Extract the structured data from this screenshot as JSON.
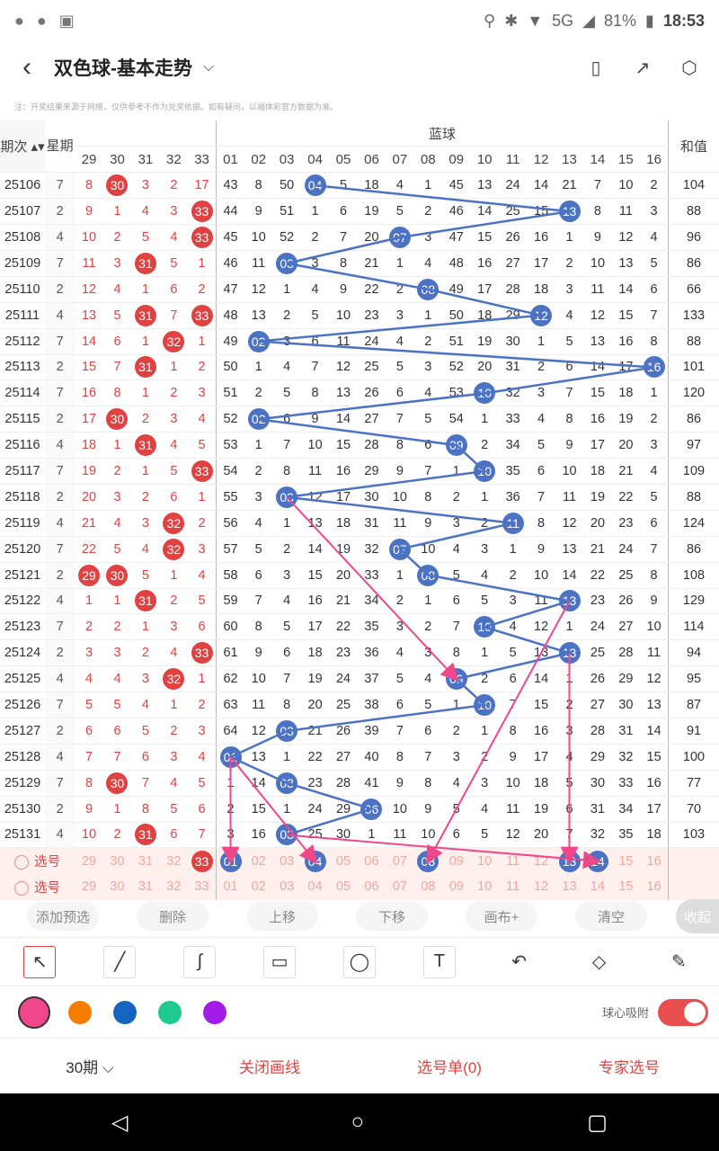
{
  "status": {
    "icons_left": [
      "wechat-icon",
      "wechat-icon",
      "image-icon"
    ],
    "battery": "81%",
    "network": "5G",
    "time": "18:53"
  },
  "nav": {
    "title": "双色球-基本走势"
  },
  "notice": "注：开奖结果来源于网络，仅供参考不作为兑奖依据。如有疑问，以福体彩官方数据为准。",
  "headers": {
    "period": "期次",
    "week": "星期",
    "blue": "蓝球",
    "sum": "和值",
    "red_cols": [
      "29",
      "30",
      "31",
      "32",
      "33"
    ],
    "blue_cols": [
      "01",
      "02",
      "03",
      "04",
      "05",
      "06",
      "07",
      "08",
      "09",
      "10",
      "11",
      "12",
      "13",
      "14",
      "15",
      "16"
    ]
  },
  "rows": [
    {
      "p": "25106",
      "w": "7",
      "red": [
        "8",
        "30",
        "3",
        "2",
        "17"
      ],
      "blue": [
        "43",
        "8",
        "50",
        "04",
        "5",
        "18",
        "4",
        "1",
        "45",
        "13",
        "24",
        "14",
        "21",
        "7",
        "10",
        "2"
      ],
      "sum": "104"
    },
    {
      "p": "25107",
      "w": "2",
      "red": [
        "9",
        "1",
        "4",
        "3",
        "33"
      ],
      "blue": [
        "44",
        "9",
        "51",
        "1",
        "6",
        "19",
        "5",
        "2",
        "46",
        "14",
        "25",
        "15",
        "13",
        "8",
        "11",
        "3"
      ],
      "sum": "88"
    },
    {
      "p": "25108",
      "w": "4",
      "red": [
        "10",
        "2",
        "5",
        "4",
        "33"
      ],
      "blue": [
        "45",
        "10",
        "52",
        "2",
        "7",
        "20",
        "07",
        "3",
        "47",
        "15",
        "26",
        "16",
        "1",
        "9",
        "12",
        "4"
      ],
      "sum": "96"
    },
    {
      "p": "25109",
      "w": "7",
      "red": [
        "11",
        "3",
        "31",
        "5",
        "1"
      ],
      "blue": [
        "46",
        "11",
        "03",
        "3",
        "8",
        "21",
        "1",
        "4",
        "48",
        "16",
        "27",
        "17",
        "2",
        "10",
        "13",
        "5"
      ],
      "sum": "86"
    },
    {
      "p": "25110",
      "w": "2",
      "red": [
        "12",
        "4",
        "1",
        "6",
        "2"
      ],
      "blue": [
        "47",
        "12",
        "1",
        "4",
        "9",
        "22",
        "2",
        "08",
        "49",
        "17",
        "28",
        "18",
        "3",
        "11",
        "14",
        "6"
      ],
      "sum": "66"
    },
    {
      "p": "25111",
      "w": "4",
      "red": [
        "13",
        "5",
        "31",
        "7",
        "33"
      ],
      "blue": [
        "48",
        "13",
        "2",
        "5",
        "10",
        "23",
        "3",
        "1",
        "50",
        "18",
        "29",
        "12",
        "4",
        "12",
        "15",
        "7"
      ],
      "sum": "133"
    },
    {
      "p": "25112",
      "w": "7",
      "red": [
        "14",
        "6",
        "1",
        "32",
        "1"
      ],
      "blue": [
        "49",
        "02",
        "3",
        "6",
        "11",
        "24",
        "4",
        "2",
        "51",
        "19",
        "30",
        "1",
        "5",
        "13",
        "16",
        "8"
      ],
      "sum": "88"
    },
    {
      "p": "25113",
      "w": "2",
      "red": [
        "15",
        "7",
        "31",
        "1",
        "2"
      ],
      "blue": [
        "50",
        "1",
        "4",
        "7",
        "12",
        "25",
        "5",
        "3",
        "52",
        "20",
        "31",
        "2",
        "6",
        "14",
        "17",
        "16"
      ],
      "sum": "101"
    },
    {
      "p": "25114",
      "w": "7",
      "red": [
        "16",
        "8",
        "1",
        "2",
        "3"
      ],
      "blue": [
        "51",
        "2",
        "5",
        "8",
        "13",
        "26",
        "6",
        "4",
        "53",
        "10",
        "32",
        "3",
        "7",
        "15",
        "18",
        "1"
      ],
      "sum": "120"
    },
    {
      "p": "25115",
      "w": "2",
      "red": [
        "17",
        "30",
        "2",
        "3",
        "4"
      ],
      "blue": [
        "52",
        "02",
        "6",
        "9",
        "14",
        "27",
        "7",
        "5",
        "54",
        "1",
        "33",
        "4",
        "8",
        "16",
        "19",
        "2"
      ],
      "sum": "86"
    },
    {
      "p": "25116",
      "w": "4",
      "red": [
        "18",
        "1",
        "31",
        "4",
        "5"
      ],
      "blue": [
        "53",
        "1",
        "7",
        "10",
        "15",
        "28",
        "8",
        "6",
        "09",
        "2",
        "34",
        "5",
        "9",
        "17",
        "20",
        "3"
      ],
      "sum": "97"
    },
    {
      "p": "25117",
      "w": "7",
      "red": [
        "19",
        "2",
        "1",
        "5",
        "33"
      ],
      "blue": [
        "54",
        "2",
        "8",
        "11",
        "16",
        "29",
        "9",
        "7",
        "1",
        "10",
        "35",
        "6",
        "10",
        "18",
        "21",
        "4"
      ],
      "sum": "109"
    },
    {
      "p": "25118",
      "w": "2",
      "red": [
        "20",
        "3",
        "2",
        "6",
        "1"
      ],
      "blue": [
        "55",
        "3",
        "03",
        "12",
        "17",
        "30",
        "10",
        "8",
        "2",
        "1",
        "36",
        "7",
        "11",
        "19",
        "22",
        "5"
      ],
      "sum": "88"
    },
    {
      "p": "25119",
      "w": "4",
      "red": [
        "21",
        "4",
        "3",
        "32",
        "2"
      ],
      "blue": [
        "56",
        "4",
        "1",
        "13",
        "18",
        "31",
        "11",
        "9",
        "3",
        "2",
        "11",
        "8",
        "12",
        "20",
        "23",
        "6"
      ],
      "sum": "124"
    },
    {
      "p": "25120",
      "w": "7",
      "red": [
        "22",
        "5",
        "4",
        "32",
        "3"
      ],
      "blue": [
        "57",
        "5",
        "2",
        "14",
        "19",
        "32",
        "07",
        "10",
        "4",
        "3",
        "1",
        "9",
        "13",
        "21",
        "24",
        "7"
      ],
      "sum": "86"
    },
    {
      "p": "25121",
      "w": "2",
      "red": [
        "29",
        "30",
        "5",
        "1",
        "4"
      ],
      "blue": [
        "58",
        "6",
        "3",
        "15",
        "20",
        "33",
        "1",
        "08",
        "5",
        "4",
        "2",
        "10",
        "14",
        "22",
        "25",
        "8"
      ],
      "sum": "108"
    },
    {
      "p": "25122",
      "w": "4",
      "red": [
        "1",
        "1",
        "31",
        "2",
        "5"
      ],
      "blue": [
        "59",
        "7",
        "4",
        "16",
        "21",
        "34",
        "2",
        "1",
        "6",
        "5",
        "3",
        "11",
        "13",
        "23",
        "26",
        "9"
      ],
      "sum": "129"
    },
    {
      "p": "25123",
      "w": "7",
      "red": [
        "2",
        "2",
        "1",
        "3",
        "6"
      ],
      "blue": [
        "60",
        "8",
        "5",
        "17",
        "22",
        "35",
        "3",
        "2",
        "7",
        "10",
        "4",
        "12",
        "1",
        "24",
        "27",
        "10"
      ],
      "sum": "114"
    },
    {
      "p": "25124",
      "w": "2",
      "red": [
        "3",
        "3",
        "2",
        "4",
        "33"
      ],
      "blue": [
        "61",
        "9",
        "6",
        "18",
        "23",
        "36",
        "4",
        "3",
        "8",
        "1",
        "5",
        "13",
        "13",
        "25",
        "28",
        "11"
      ],
      "sum": "94"
    },
    {
      "p": "25125",
      "w": "4",
      "red": [
        "4",
        "4",
        "3",
        "32",
        "1"
      ],
      "blue": [
        "62",
        "10",
        "7",
        "19",
        "24",
        "37",
        "5",
        "4",
        "09",
        "2",
        "6",
        "14",
        "1",
        "26",
        "29",
        "12"
      ],
      "sum": "95"
    },
    {
      "p": "25126",
      "w": "7",
      "red": [
        "5",
        "5",
        "4",
        "1",
        "2"
      ],
      "blue": [
        "63",
        "11",
        "8",
        "20",
        "25",
        "38",
        "6",
        "5",
        "1",
        "10",
        "7",
        "15",
        "2",
        "27",
        "30",
        "13"
      ],
      "sum": "87"
    },
    {
      "p": "25127",
      "w": "2",
      "red": [
        "6",
        "6",
        "5",
        "2",
        "3"
      ],
      "blue": [
        "64",
        "12",
        "03",
        "21",
        "26",
        "39",
        "7",
        "6",
        "2",
        "1",
        "8",
        "16",
        "3",
        "28",
        "31",
        "14"
      ],
      "sum": "91"
    },
    {
      "p": "25128",
      "w": "4",
      "red": [
        "7",
        "7",
        "6",
        "3",
        "4"
      ],
      "blue": [
        "01",
        "13",
        "1",
        "22",
        "27",
        "40",
        "8",
        "7",
        "3",
        "2",
        "9",
        "17",
        "4",
        "29",
        "32",
        "15"
      ],
      "sum": "100"
    },
    {
      "p": "25129",
      "w": "7",
      "red": [
        "8",
        "30",
        "7",
        "4",
        "5"
      ],
      "blue": [
        "1",
        "14",
        "03",
        "23",
        "28",
        "41",
        "9",
        "8",
        "4",
        "3",
        "10",
        "18",
        "5",
        "30",
        "33",
        "16"
      ],
      "sum": "77"
    },
    {
      "p": "25130",
      "w": "2",
      "red": [
        "9",
        "1",
        "8",
        "5",
        "6"
      ],
      "blue": [
        "2",
        "15",
        "1",
        "24",
        "29",
        "06",
        "10",
        "9",
        "5",
        "4",
        "11",
        "19",
        "6",
        "31",
        "34",
        "17"
      ],
      "sum": "70"
    },
    {
      "p": "25131",
      "w": "4",
      "red": [
        "10",
        "2",
        "31",
        "6",
        "7"
      ],
      "blue": [
        "3",
        "16",
        "03",
        "25",
        "30",
        "1",
        "11",
        "10",
        "6",
        "5",
        "12",
        "20",
        "7",
        "32",
        "35",
        "18"
      ],
      "sum": "103"
    }
  ],
  "hits": {
    "25106": {
      "red": [
        1
      ],
      "blue": 3
    },
    "25107": {
      "red": [
        4
      ],
      "blue": 12
    },
    "25108": {
      "red": [
        4
      ],
      "blue": 6
    },
    "25109": {
      "red": [
        2
      ],
      "blue": 2
    },
    "25110": {
      "red": [],
      "blue": 7
    },
    "25111": {
      "red": [
        2,
        4
      ],
      "blue": 11
    },
    "25112": {
      "red": [
        3
      ],
      "blue": 1
    },
    "25113": {
      "red": [
        2
      ],
      "blue": 15
    },
    "25114": {
      "red": [],
      "blue": 9
    },
    "25115": {
      "red": [
        1
      ],
      "blue": 1
    },
    "25116": {
      "red": [
        2
      ],
      "blue": 8
    },
    "25117": {
      "red": [
        4
      ],
      "blue": 9
    },
    "25118": {
      "red": [],
      "blue": 2
    },
    "25119": {
      "red": [
        3
      ],
      "blue": 10
    },
    "25120": {
      "red": [
        3
      ],
      "blue": 6
    },
    "25121": {
      "red": [
        0,
        1
      ],
      "blue": 7
    },
    "25122": {
      "red": [
        2
      ],
      "blue": 12
    },
    "25123": {
      "red": [],
      "blue": 9
    },
    "25124": {
      "red": [
        4
      ],
      "blue": 12
    },
    "25125": {
      "red": [
        3
      ],
      "blue": 8
    },
    "25126": {
      "red": [],
      "blue": 9
    },
    "25127": {
      "red": [],
      "blue": 2
    },
    "25128": {
      "red": [],
      "blue": 0
    },
    "25129": {
      "red": [
        1
      ],
      "blue": 2
    },
    "25130": {
      "red": [],
      "blue": 5
    },
    "25131": {
      "red": [
        2
      ],
      "blue": 2
    }
  },
  "select_rows": [
    {
      "label": "选号",
      "red": [
        "29",
        "30",
        "31",
        "32",
        "33"
      ],
      "blue": [
        "01",
        "02",
        "03",
        "04",
        "05",
        "06",
        "07",
        "08",
        "09",
        "10",
        "11",
        "12",
        "13",
        "14",
        "15",
        "16"
      ],
      "sel_red": [
        4
      ],
      "sel_blue": [
        0,
        3,
        7,
        12,
        13
      ]
    },
    {
      "label": "选号",
      "red": [
        "29",
        "30",
        "31",
        "32",
        "33"
      ],
      "blue": [
        "01",
        "02",
        "03",
        "04",
        "05",
        "06",
        "07",
        "08",
        "09",
        "10",
        "11",
        "12",
        "13",
        "14",
        "15",
        "16"
      ],
      "sel_red": [],
      "sel_blue": []
    }
  ],
  "actions": [
    "添加预选",
    "删除",
    "上移",
    "下移",
    "画布+",
    "清空"
  ],
  "collapse": "收起",
  "tools": [
    "arrow-tool-icon",
    "line-tool-icon",
    "curve-tool-icon",
    "rect-tool-icon",
    "circle-tool-icon",
    "text-tool-icon",
    "undo-icon",
    "eraser-icon",
    "clear-brush-icon"
  ],
  "tool_glyphs": [
    "↖",
    "╱",
    "∫",
    "▭",
    "◯",
    "T",
    "↶",
    "◇",
    "✎"
  ],
  "colors": [
    "#f0468a",
    "#f57c00",
    "#1565c0",
    "#1fc98f",
    "#a21ce8"
  ],
  "snap_label": "球心吸附",
  "bottom": {
    "periods": "30期",
    "close_draw": "关闭画线",
    "selection": "选号单(0)",
    "expert": "专家选号"
  }
}
